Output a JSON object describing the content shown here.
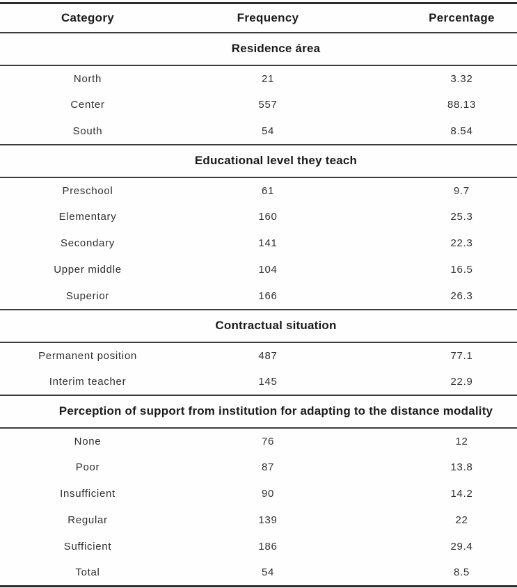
{
  "table": {
    "columns": [
      "Category",
      "Frequency",
      "Percentage"
    ],
    "sections": [
      {
        "title": "Residence área",
        "rows": [
          [
            "North",
            "21",
            "3.32"
          ],
          [
            "Center",
            "557",
            "88.13"
          ],
          [
            "South",
            "54",
            "8.54"
          ]
        ]
      },
      {
        "title": "Educational level they teach",
        "rows": [
          [
            "Preschool",
            "61",
            "9.7"
          ],
          [
            "Elementary",
            "160",
            "25.3"
          ],
          [
            "Secondary",
            "141",
            "22.3"
          ],
          [
            "Upper middle",
            "104",
            "16.5"
          ],
          [
            "Superior",
            "166",
            "26.3"
          ]
        ]
      },
      {
        "title": "Contractual situation",
        "rows": [
          [
            "Permanent position",
            "487",
            "77.1"
          ],
          [
            "Interim teacher",
            "145",
            "22.9"
          ]
        ]
      },
      {
        "title": "Perception of support from institution for adapting to the distance modality",
        "rows": [
          [
            "None",
            "76",
            "12"
          ],
          [
            "Poor",
            "87",
            "13.8"
          ],
          [
            "Insufficient",
            "90",
            "14.2"
          ],
          [
            "Regular",
            "139",
            "22"
          ],
          [
            "Sufficient",
            "186",
            "29.4"
          ],
          [
            "Total",
            "54",
            "8.5"
          ]
        ]
      }
    ]
  }
}
